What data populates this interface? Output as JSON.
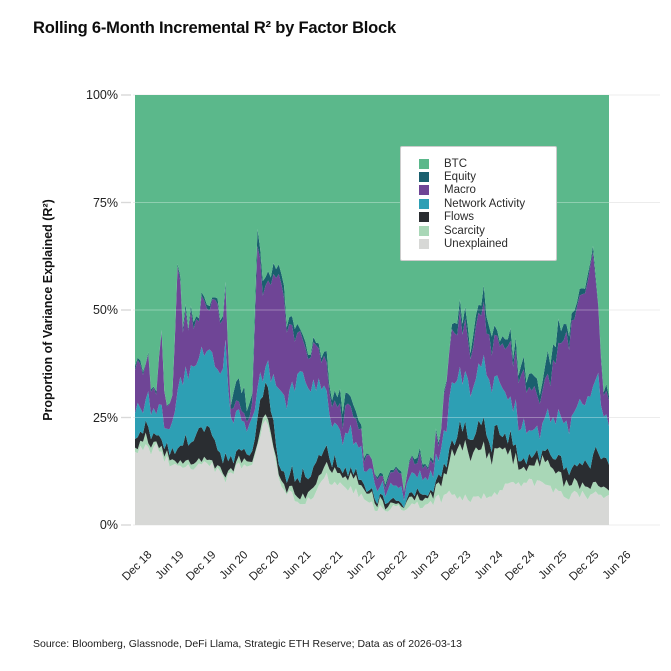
{
  "title": "Rolling 6-Month Incremental R² by Factor Block",
  "source": "Source: Bloomberg, Glassnode, DeFi Llama, Strategic ETH Reserve; Data as of 2026-03-13",
  "chart_data": {
    "type": "area",
    "stacked": true,
    "units": "percent",
    "title": "Rolling 6-Month Incremental R² by Factor Block",
    "xlabel": "",
    "ylabel": "Proportion of Variance Explained (R²)",
    "ylim": [
      0,
      100
    ],
    "y_ticks": [
      0,
      25,
      50,
      75,
      100
    ],
    "y_tick_labels": [
      "0%",
      "25%",
      "50%",
      "75%",
      "100%"
    ],
    "grid": true,
    "legend_position": "upper right",
    "x_tick_labels": [
      "Dec 18",
      "Jun 19",
      "Dec 19",
      "Jun 20",
      "Dec 20",
      "Jun 21",
      "Dec 21",
      "Jun 22",
      "Dec 22",
      "Jun 23",
      "Dec 23",
      "Jun 24",
      "Dec 24",
      "Jun 25",
      "Dec 25",
      "Jun 26"
    ],
    "x_tick_first_index": 2,
    "x_tick_step": 6,
    "x": [
      "2018-10",
      "2018-11",
      "2018-12",
      "2019-01",
      "2019-02",
      "2019-03",
      "2019-04",
      "2019-05",
      "2019-06",
      "2019-07",
      "2019-08",
      "2019-09",
      "2019-10",
      "2019-11",
      "2019-12",
      "2020-01",
      "2020-02",
      "2020-03",
      "2020-04",
      "2020-05",
      "2020-06",
      "2020-07",
      "2020-08",
      "2020-09",
      "2020-10",
      "2020-11",
      "2020-12",
      "2021-01",
      "2021-02",
      "2021-03",
      "2021-04",
      "2021-05",
      "2021-06",
      "2021-07",
      "2021-08",
      "2021-09",
      "2021-10",
      "2021-11",
      "2021-12",
      "2022-01",
      "2022-02",
      "2022-03",
      "2022-04",
      "2022-05",
      "2022-06",
      "2022-07",
      "2022-08",
      "2022-09",
      "2022-10",
      "2022-11",
      "2022-12",
      "2023-01",
      "2023-02",
      "2023-03",
      "2023-04",
      "2023-05",
      "2023-06",
      "2023-07",
      "2023-08",
      "2023-09",
      "2023-10",
      "2023-11",
      "2023-12",
      "2024-01",
      "2024-02",
      "2024-03",
      "2024-04",
      "2024-05",
      "2024-06",
      "2024-07",
      "2024-08",
      "2024-09",
      "2024-10",
      "2024-11",
      "2024-12",
      "2025-01",
      "2025-02",
      "2025-03",
      "2025-04",
      "2025-05",
      "2025-06",
      "2025-07",
      "2025-08",
      "2025-09",
      "2025-10",
      "2025-11",
      "2025-12",
      "2026-01",
      "2026-02",
      "2026-03"
    ],
    "series": [
      {
        "name": "BTC",
        "color": "#5bb88b",
        "values": [
          63,
          61,
          59.5,
          65.5,
          68,
          58,
          72,
          71,
          37,
          55,
          50,
          54,
          50,
          47,
          51,
          45,
          52,
          45,
          73,
          70,
          68,
          70,
          70,
          34,
          40,
          43,
          40,
          40,
          46,
          53,
          55,
          55,
          56,
          59,
          58,
          60,
          60,
          67,
          70,
          70.5,
          71.5,
          72.5,
          76,
          82,
          85,
          87.5,
          88,
          89,
          89.5,
          87,
          89,
          88,
          86,
          83,
          84,
          84.5,
          82.5,
          80,
          70,
          57,
          52,
          53,
          52,
          54,
          52,
          49,
          53,
          56,
          55,
          57,
          57,
          60,
          61,
          61,
          64,
          65,
          67,
          64,
          60,
          57,
          56,
          53,
          50,
          48,
          45,
          41,
          37,
          47,
          65,
          70
        ]
      },
      {
        "name": "Equity",
        "color": "#1a5f6e",
        "values": [
          1,
          1,
          0.5,
          0.5,
          0.5,
          0.5,
          0,
          0,
          1,
          1,
          1,
          1,
          1,
          1,
          1,
          1,
          1,
          1,
          1,
          4,
          5,
          4,
          3,
          3,
          3,
          2,
          2,
          2,
          2,
          2,
          2,
          1,
          1,
          1,
          1,
          1,
          2,
          2,
          2,
          3,
          3,
          2,
          2,
          1,
          0.5,
          0.5,
          0.5,
          0.5,
          0.5,
          0.5,
          0.5,
          0.5,
          0.5,
          1,
          1,
          0.5,
          0.5,
          0.5,
          1,
          1,
          2,
          2,
          2,
          2,
          2,
          3,
          3,
          3,
          2,
          2,
          2,
          2,
          2,
          2,
          3,
          3,
          3,
          4,
          5,
          5,
          4,
          3,
          2,
          2,
          1,
          1,
          1,
          1,
          1,
          1
        ]
      },
      {
        "name": "Macro",
        "color": "#6f4596",
        "values": [
          10,
          10,
          10,
          7,
          4.5,
          16,
          5,
          6,
          30,
          12,
          13,
          9,
          10,
          12,
          10,
          16,
          12,
          13,
          3,
          2,
          2,
          2,
          3,
          33,
          22,
          18,
          24,
          28,
          22,
          14,
          10,
          8,
          9,
          8,
          9,
          8,
          8,
          6,
          5,
          5,
          5,
          5,
          4,
          3,
          2.5,
          2,
          2,
          2,
          2,
          3,
          2,
          2.5,
          3,
          4,
          3,
          3,
          4,
          4,
          8,
          12,
          12,
          12,
          11,
          10,
          11,
          13,
          10,
          9,
          10,
          10,
          12,
          11,
          10,
          12,
          10,
          9,
          8,
          8,
          10,
          13,
          16,
          20,
          22,
          24,
          26,
          28,
          30,
          16,
          7,
          6
        ]
      },
      {
        "name": "Network Activity",
        "color": "#2d9fb4",
        "values": [
          6,
          6.5,
          7,
          6,
          5,
          6,
          5,
          6,
          14,
          14,
          17,
          16,
          17,
          18,
          17,
          19,
          18,
          26,
          8,
          8,
          8,
          7,
          6,
          6,
          5,
          6,
          10,
          16,
          18,
          20,
          22,
          24,
          22,
          20,
          18,
          16,
          14,
          10,
          9,
          8,
          8,
          8,
          7,
          5,
          4,
          3.5,
          3,
          3,
          3,
          3.5,
          3,
          3,
          3.5,
          4,
          4,
          4,
          4.5,
          5,
          8,
          12,
          13,
          12,
          13,
          12,
          13,
          14,
          13,
          12,
          13,
          12,
          10,
          9,
          9,
          8,
          7,
          7,
          6,
          7,
          8,
          9,
          10,
          11,
          12,
          13,
          14,
          15,
          16,
          18,
          10,
          9
        ]
      },
      {
        "name": "Flows",
        "color": "#2a2d31",
        "values": [
          2,
          2.5,
          3,
          2.5,
          2,
          2.5,
          2,
          2,
          3,
          4,
          5,
          6,
          7,
          7,
          6,
          5,
          4,
          4,
          2,
          2,
          2,
          2,
          2,
          5,
          6,
          6,
          5,
          3,
          3,
          3,
          4,
          5,
          5,
          4,
          4,
          3,
          3,
          2,
          2,
          1.5,
          1.5,
          1.5,
          1,
          1,
          1,
          1,
          1,
          1,
          0.5,
          1,
          0.5,
          0.5,
          1,
          1,
          1,
          1,
          1,
          1.5,
          2,
          3,
          4,
          4,
          4,
          5,
          5,
          5,
          4,
          4,
          4,
          3,
          3,
          3,
          3,
          3,
          2,
          2,
          2,
          2,
          2,
          3,
          3,
          3,
          4,
          4,
          5,
          6,
          7,
          8,
          8,
          6
        ]
      },
      {
        "name": "Scarcity",
        "color": "#a9d7b7",
        "values": [
          1,
          1.5,
          2,
          1.5,
          1,
          1,
          1,
          1,
          1,
          1,
          1,
          1,
          1,
          1,
          1,
          1,
          1,
          1,
          1,
          1,
          1,
          1,
          1,
          1,
          1,
          1,
          1,
          1,
          1,
          1,
          1,
          2,
          2,
          2,
          2,
          2,
          2,
          3,
          3,
          3,
          3,
          3,
          3,
          2,
          2,
          1.5,
          1.5,
          1,
          1,
          1,
          1,
          1.5,
          1.5,
          2,
          2,
          2,
          2.5,
          3,
          5,
          8,
          10,
          11,
          12,
          11,
          11,
          10,
          10,
          9,
          9,
          8,
          7,
          6,
          5,
          4,
          4,
          4,
          4,
          5,
          6,
          5,
          4,
          3,
          3,
          2,
          2,
          2,
          2,
          2,
          2,
          1
        ]
      },
      {
        "name": "Unexplained",
        "color": "#d7d8d6",
        "values": [
          17,
          17.5,
          18,
          17,
          19,
          16,
          15,
          14,
          14,
          13,
          13,
          13,
          14,
          14,
          14,
          13,
          12,
          10,
          12,
          13,
          14,
          14,
          15,
          18,
          23,
          24,
          18,
          10,
          8,
          7,
          6,
          5,
          5,
          6,
          8,
          10,
          11,
          10,
          9,
          9,
          8,
          8,
          7,
          6,
          5,
          4,
          4,
          3.5,
          3.5,
          4,
          4,
          4,
          4.5,
          5,
          5,
          5,
          5,
          6,
          6,
          7,
          7,
          6,
          6,
          6,
          6,
          6,
          7,
          7,
          7,
          8,
          9,
          9,
          10,
          10,
          10,
          10,
          10,
          10,
          9,
          8,
          7,
          7,
          7,
          7,
          7,
          7,
          7,
          8,
          7,
          7
        ]
      }
    ]
  }
}
